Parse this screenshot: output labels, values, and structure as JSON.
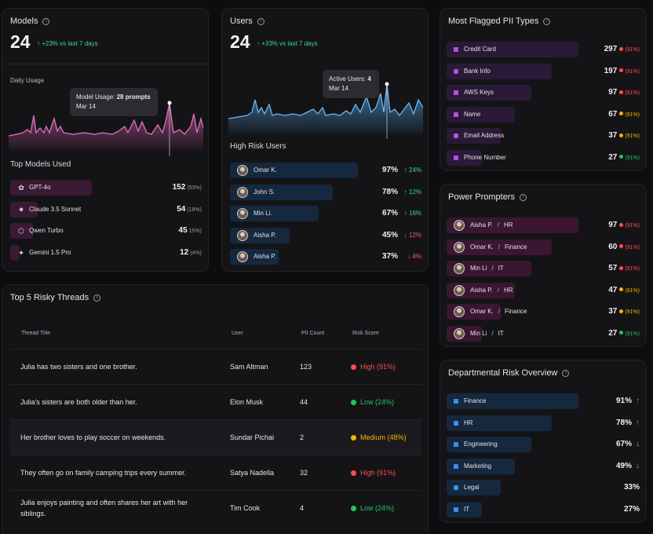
{
  "models": {
    "title": "Models",
    "value": "24",
    "delta": "↑ +23% vs last 7 days",
    "daily_usage_label": "Daily Usage",
    "tooltip": {
      "prefix": "Model Usage: ",
      "value": "28 prompts",
      "date": "Mar 14"
    },
    "top_models_label": "Top Models Used",
    "top_models": [
      {
        "name": "GPT-4o",
        "count": "152",
        "pct": "(53%)",
        "icon": "openai-icon",
        "fill": 0.53
      },
      {
        "name": "Claude 3.5 Sonnet",
        "count": "54",
        "pct": "(18%)",
        "icon": "claude-icon",
        "fill": 0.18
      },
      {
        "name": "Qwen Turbo",
        "count": "45",
        "pct": "15%)",
        "icon": "qwen-icon",
        "fill": 0.15
      },
      {
        "name": "Gemini 1.5 Pro",
        "count": "12",
        "pct": "(4%)",
        "icon": "gemini-icon",
        "fill": 0.04
      }
    ]
  },
  "users": {
    "title": "Users",
    "value": "24",
    "delta": "↑ +33% vs last 7 days",
    "tooltip": {
      "prefix": "Active Users: ",
      "value": "4",
      "date": "Mar 14"
    },
    "high_risk_label": "High Risk Users",
    "high_risk": [
      {
        "name": "Omar K.",
        "pct": "97%",
        "change": "↑ 24%",
        "dir": "up",
        "fill": 0.97
      },
      {
        "name": "John S.",
        "pct": "78%",
        "change": "↑ 12%",
        "dir": "up",
        "fill": 0.78
      },
      {
        "name": "Min Li.",
        "pct": "67%",
        "change": "↑ 16%",
        "dir": "up",
        "fill": 0.67
      },
      {
        "name": "Aisha P.",
        "pct": "45%",
        "change": "↓ 12%",
        "dir": "down",
        "fill": 0.45
      },
      {
        "name": "Aisha P.",
        "pct": "37%",
        "change": "↓ 4%",
        "dir": "down",
        "fill": 0.37
      }
    ]
  },
  "flagged": {
    "title": "Most Flagged PII Types",
    "items": [
      {
        "name": "Credit Card",
        "count": "297",
        "pct": "(91%)",
        "level": "red",
        "fill": 1.0
      },
      {
        "name": "Bank Info",
        "count": "197",
        "pct": "(91%)",
        "level": "red",
        "fill": 0.8
      },
      {
        "name": "AWS Keys",
        "count": "97",
        "pct": "(91%)",
        "level": "red",
        "fill": 0.64
      },
      {
        "name": "Name",
        "count": "67",
        "pct": "(91%)",
        "level": "yellow",
        "fill": 0.52
      },
      {
        "name": "Email Address",
        "count": "37",
        "pct": "(91%)",
        "level": "yellow",
        "fill": 0.41
      },
      {
        "name": "Phone Number",
        "count": "27",
        "pct": "(91%)",
        "level": "green",
        "fill": 0.27
      }
    ]
  },
  "prompters": {
    "title": "Power Prompters",
    "items": [
      {
        "name": "Aisha P.",
        "dept": "HR",
        "count": "97",
        "pct": "(91%)",
        "level": "red",
        "fill": 1.0
      },
      {
        "name": "Omar K.",
        "dept": "Finance",
        "count": "60",
        "pct": "(91%)",
        "level": "red",
        "fill": 0.8
      },
      {
        "name": "Min Li",
        "dept": "IT",
        "count": "57",
        "pct": "(91%)",
        "level": "red",
        "fill": 0.64
      },
      {
        "name": "Aisha P.",
        "dept": "HR",
        "count": "47",
        "pct": "(91%)",
        "level": "yellow",
        "fill": 0.52
      },
      {
        "name": "Omar K.",
        "dept": "Finance",
        "count": "37",
        "pct": "(91%)",
        "level": "yellow",
        "fill": 0.41
      },
      {
        "name": "Min Li",
        "dept": "IT",
        "count": "27",
        "pct": "(91%)",
        "level": "green",
        "fill": 0.27
      }
    ]
  },
  "departments": {
    "title": "Departmental Risk Overview",
    "items": [
      {
        "name": "Finance",
        "pct": "91%",
        "arrow": "↑",
        "dir": "up",
        "fill": 1.0
      },
      {
        "name": "HR",
        "pct": "78%",
        "arrow": "↑",
        "dir": "up",
        "fill": 0.8
      },
      {
        "name": "Engineering",
        "pct": "67%",
        "arrow": "↓",
        "dir": "down",
        "fill": 0.64
      },
      {
        "name": "Marketing",
        "pct": "49%",
        "arrow": "↓",
        "dir": "down",
        "fill": 0.52
      },
      {
        "name": "Legal",
        "pct": "33%",
        "arrow": "",
        "dir": "none",
        "fill": 0.41
      },
      {
        "name": "IT",
        "pct": "27%",
        "arrow": "",
        "dir": "none",
        "fill": 0.27
      }
    ]
  },
  "threads": {
    "title": "Top 5 Risky Threads",
    "headers": [
      "Thread Title",
      "User",
      "PII Count",
      "Risk Score"
    ],
    "rows": [
      {
        "title": "Julia has two sisters and one brother.",
        "user": "Sam Altman",
        "count": "123",
        "risk": "High (91%)",
        "level": "high"
      },
      {
        "title": "Julia's sisters are both older than her.",
        "user": "Elon Musk",
        "count": "44",
        "risk": "Low (24%)",
        "level": "low"
      },
      {
        "title": "Her brother loves to play soccer on weekends.",
        "user": "Sundar Pichai",
        "count": "2",
        "risk": "Medium (48%)",
        "level": "medium"
      },
      {
        "title": "They often go on family camping trips every summer.",
        "user": "Satya Nadella",
        "count": "32",
        "risk": "High (91%)",
        "level": "high"
      },
      {
        "title": "Julia enjoys painting and often shares her art with her siblings.",
        "user": "Tim Cook",
        "count": "4",
        "risk": "Low (24%)",
        "level": "low"
      }
    ]
  },
  "colors": {
    "red": "#ff4d4f",
    "yellow": "#f5b400",
    "green": "#22c55e",
    "up": "#3ddc84",
    "down": "#ff5a5a",
    "pink_bar": "#3a1a33",
    "purple_bar": "#2a1a38",
    "blue_bar": "#16283e",
    "maroon_bar": "#3a1630"
  }
}
